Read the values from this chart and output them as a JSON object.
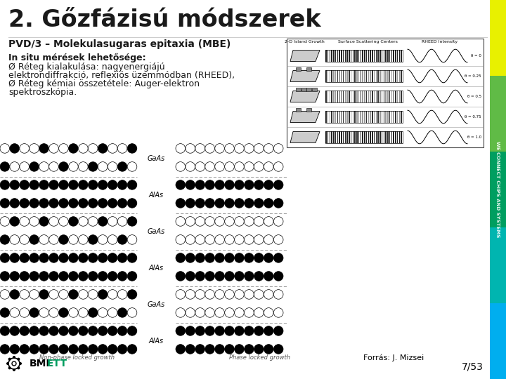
{
  "title": "2. Gőzfázisú módszerek",
  "subtitle": "PVD/3 – Molekulasugaras epitaxia (MBE)",
  "body_lines": [
    "In situ mérések lehetősége:",
    "Ø Réteg kialakulása: nagyenergiájú",
    "elektrondiffrakció, reflexiós üzemmódban (RHEED),",
    "Ø Réteg kémiai összetétele: Auger-elektron",
    "spektroszkópia."
  ],
  "footer_left": "Non-phase locked growth",
  "footer_center": "Phase locked growth",
  "footer_source": "Forrás: J. Mizsei",
  "page_number": "7/53",
  "bg_color": "#ffffff",
  "title_color": "#1a1a1a",
  "subtitle_color": "#1a1a1a",
  "body_color": "#1a1a1a",
  "accent_colors": [
    "#e8f000",
    "#60bb46",
    "#009e60",
    "#00b5b0",
    "#00aeef"
  ],
  "layer_labels": [
    "GaAs",
    "AlAs",
    "GaAs",
    "AlAs",
    "GaAs",
    "AlAs"
  ],
  "rheed_labels": [
    "θ = 0",
    "θ = 0.25",
    "θ = 0.5",
    "θ = 0.75",
    "θ = 1.0"
  ],
  "col_headers": [
    "2-D Island Growth",
    "Surface Scattering Centers",
    "RHEED Intensity"
  ]
}
